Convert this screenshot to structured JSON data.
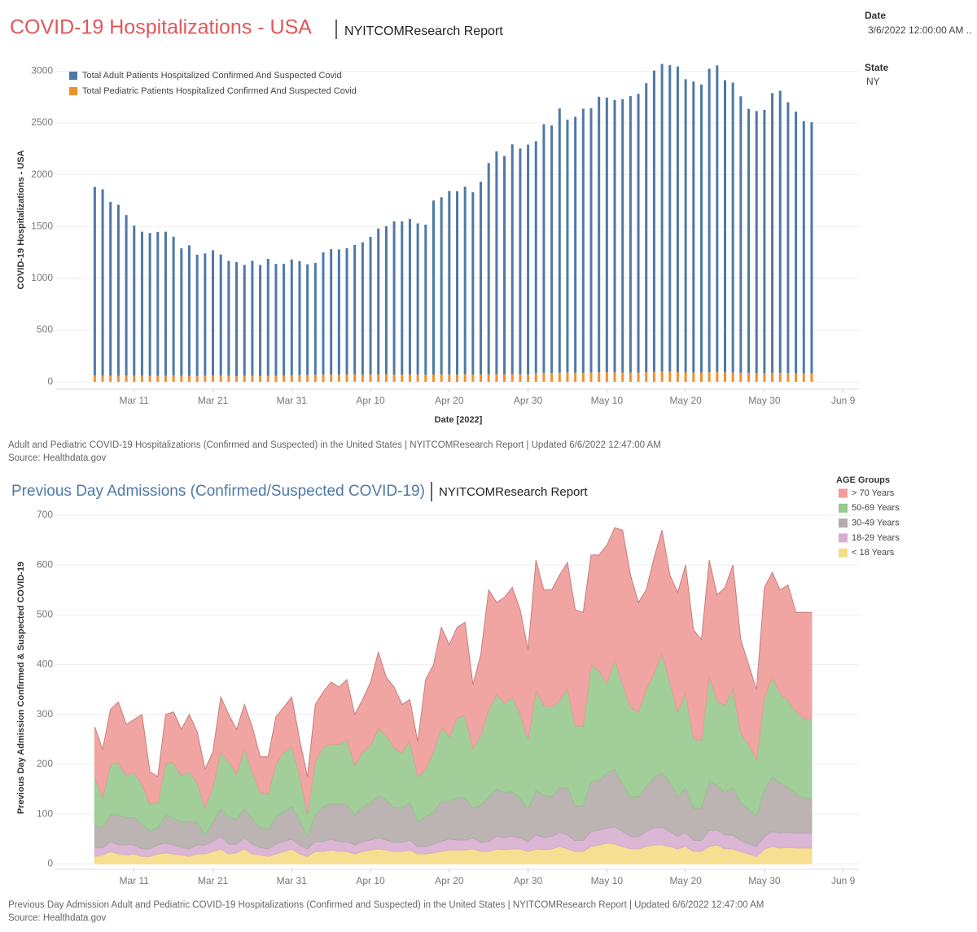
{
  "filters": [
    {
      "label": "Date",
      "value": "3/6/2022 12:00:00 AM .."
    },
    {
      "label": "State",
      "value": "NY"
    }
  ],
  "chart_data": [
    {
      "type": "bar",
      "stacked": true,
      "title": "COVID-19 Hospitalizations - USA",
      "subtitle": "NYITCOMResearch Report",
      "x_label": "Date [2022]",
      "y_label": "COVID-19 Hospitalizations - USA",
      "caption": "Adult and Pediatric COVID-19 Hospitalizations (Confirmed and Suspected) in the United States | NYITCOMResearch Report | Updated 6/6/2022 12:47:00 AM",
      "source": "Source: Healthdata.gov",
      "x": [
        "2022-03-06",
        "2022-03-07",
        "2022-03-08",
        "2022-03-09",
        "2022-03-10",
        "2022-03-11",
        "2022-03-12",
        "2022-03-13",
        "2022-03-14",
        "2022-03-15",
        "2022-03-16",
        "2022-03-17",
        "2022-03-18",
        "2022-03-19",
        "2022-03-20",
        "2022-03-21",
        "2022-03-22",
        "2022-03-23",
        "2022-03-24",
        "2022-03-25",
        "2022-03-26",
        "2022-03-27",
        "2022-03-28",
        "2022-03-29",
        "2022-03-30",
        "2022-03-31",
        "2022-04-01",
        "2022-04-02",
        "2022-04-03",
        "2022-04-04",
        "2022-04-05",
        "2022-04-06",
        "2022-04-07",
        "2022-04-08",
        "2022-04-09",
        "2022-04-10",
        "2022-04-11",
        "2022-04-12",
        "2022-04-13",
        "2022-04-14",
        "2022-04-15",
        "2022-04-16",
        "2022-04-17",
        "2022-04-18",
        "2022-04-19",
        "2022-04-20",
        "2022-04-21",
        "2022-04-22",
        "2022-04-23",
        "2022-04-24",
        "2022-04-25",
        "2022-04-26",
        "2022-04-27",
        "2022-04-28",
        "2022-04-29",
        "2022-04-30",
        "2022-05-01",
        "2022-05-02",
        "2022-05-03",
        "2022-05-04",
        "2022-05-05",
        "2022-05-06",
        "2022-05-07",
        "2022-05-08",
        "2022-05-09",
        "2022-05-10",
        "2022-05-11",
        "2022-05-12",
        "2022-05-13",
        "2022-05-14",
        "2022-05-15",
        "2022-05-16",
        "2022-05-17",
        "2022-05-18",
        "2022-05-19",
        "2022-05-20",
        "2022-05-21",
        "2022-05-22",
        "2022-05-23",
        "2022-05-24",
        "2022-05-25",
        "2022-05-26",
        "2022-05-27",
        "2022-05-28",
        "2022-05-29",
        "2022-05-30",
        "2022-05-31",
        "2022-06-01",
        "2022-06-02",
        "2022-06-03",
        "2022-06-04",
        "2022-06-05"
      ],
      "series": [
        {
          "name": "Total Adult Patients Hospitalized Confirmed And Suspected Covid",
          "color": "#4e79a7",
          "values": [
            1820,
            1800,
            1680,
            1650,
            1550,
            1450,
            1390,
            1380,
            1390,
            1390,
            1340,
            1230,
            1260,
            1170,
            1180,
            1210,
            1170,
            1110,
            1100,
            1070,
            1110,
            1070,
            1130,
            1080,
            1080,
            1120,
            1100,
            1070,
            1080,
            1180,
            1210,
            1210,
            1220,
            1250,
            1280,
            1330,
            1410,
            1430,
            1480,
            1480,
            1500,
            1460,
            1450,
            1680,
            1710,
            1770,
            1770,
            1810,
            1760,
            1860,
            2040,
            2150,
            2110,
            2220,
            2180,
            2220,
            2240,
            2400,
            2390,
            2550,
            2440,
            2470,
            2550,
            2550,
            2660,
            2650,
            2630,
            2640,
            2670,
            2690,
            2790,
            2910,
            2970,
            2960,
            2950,
            2830,
            2810,
            2780,
            2930,
            2960,
            2820,
            2800,
            2670,
            2550,
            2530,
            2540,
            2700,
            2725,
            2615,
            2525,
            2435,
            2425
          ]
        },
        {
          "name": "Total Pediatric Patients Hospitalized Confirmed And Suspected Covid",
          "color": "#f28e2b",
          "values": [
            62,
            60,
            58,
            60,
            61,
            59,
            60,
            57,
            58,
            60,
            62,
            59,
            58,
            57,
            60,
            61,
            60,
            58,
            56,
            59,
            60,
            58,
            57,
            59,
            60,
            62,
            66,
            65,
            68,
            70,
            71,
            69,
            70,
            72,
            68,
            70,
            71,
            73,
            70,
            69,
            72,
            70,
            68,
            71,
            73,
            72,
            70,
            74,
            71,
            72,
            73,
            75,
            72,
            74,
            73,
            71,
            84,
            88,
            86,
            90,
            92,
            89,
            88,
            91,
            93,
            95,
            92,
            90,
            89,
            91,
            94,
            96,
            100,
            98,
            95,
            92,
            90,
            91,
            94,
            96,
            93,
            90,
            88,
            86,
            85,
            87,
            88,
            86,
            85,
            84,
            83,
            82
          ]
        }
      ],
      "xlim": [
        "2022-03-01",
        "2022-06-11"
      ],
      "xticks": [
        {
          "value": "2022-03-11",
          "label": "Mar 11"
        },
        {
          "value": "2022-03-21",
          "label": "Mar 21"
        },
        {
          "value": "2022-03-31",
          "label": "Mar 31"
        },
        {
          "value": "2022-04-10",
          "label": "Apr 10"
        },
        {
          "value": "2022-04-20",
          "label": "Apr 20"
        },
        {
          "value": "2022-04-30",
          "label": "Apr 30"
        },
        {
          "value": "2022-05-10",
          "label": "May 10"
        },
        {
          "value": "2022-05-20",
          "label": "May 20"
        },
        {
          "value": "2022-05-30",
          "label": "May 30"
        },
        {
          "value": "2022-06-09",
          "label": "Jun 9"
        }
      ],
      "ylim": [
        -70,
        3200
      ],
      "yticks": [
        0,
        500,
        1000,
        1500,
        2000,
        2500,
        3000
      ],
      "grid": true,
      "legend": "top-left"
    },
    {
      "type": "area",
      "stacked": true,
      "title": "Previous Day Admissions (Confirmed/Suspected COVID-19)",
      "subtitle": "NYITCOMResearch Report",
      "y_label": "Previous Day Admission Confirmed & Suspected COVID-19",
      "caption": "Previous Day Admission Adult and Pediatric COVID-19 Hospitalizations (Confirmed and Suspected) in the United States | NYITCOMResearch Report | Updated 6/6/2022 12:47:00 AM",
      "source": "Source: Healthdata.gov",
      "legend_title": "AGE Groups",
      "legend": "right",
      "x": [
        "2022-03-06",
        "2022-03-07",
        "2022-03-08",
        "2022-03-09",
        "2022-03-10",
        "2022-03-11",
        "2022-03-12",
        "2022-03-13",
        "2022-03-14",
        "2022-03-15",
        "2022-03-16",
        "2022-03-17",
        "2022-03-18",
        "2022-03-19",
        "2022-03-20",
        "2022-03-21",
        "2022-03-22",
        "2022-03-23",
        "2022-03-24",
        "2022-03-25",
        "2022-03-26",
        "2022-03-27",
        "2022-03-28",
        "2022-03-29",
        "2022-03-30",
        "2022-03-31",
        "2022-04-01",
        "2022-04-02",
        "2022-04-03",
        "2022-04-04",
        "2022-04-05",
        "2022-04-06",
        "2022-04-07",
        "2022-04-08",
        "2022-04-09",
        "2022-04-10",
        "2022-04-11",
        "2022-04-12",
        "2022-04-13",
        "2022-04-14",
        "2022-04-15",
        "2022-04-16",
        "2022-04-17",
        "2022-04-18",
        "2022-04-19",
        "2022-04-20",
        "2022-04-21",
        "2022-04-22",
        "2022-04-23",
        "2022-04-24",
        "2022-04-25",
        "2022-04-26",
        "2022-04-27",
        "2022-04-28",
        "2022-04-29",
        "2022-04-30",
        "2022-05-01",
        "2022-05-02",
        "2022-05-03",
        "2022-05-04",
        "2022-05-05",
        "2022-05-06",
        "2022-05-07",
        "2022-05-08",
        "2022-05-09",
        "2022-05-10",
        "2022-05-11",
        "2022-05-12",
        "2022-05-13",
        "2022-05-14",
        "2022-05-15",
        "2022-05-16",
        "2022-05-17",
        "2022-05-18",
        "2022-05-19",
        "2022-05-20",
        "2022-05-21",
        "2022-05-22",
        "2022-05-23",
        "2022-05-24",
        "2022-05-25",
        "2022-05-26",
        "2022-05-27",
        "2022-05-28",
        "2022-05-29",
        "2022-05-30",
        "2022-05-31",
        "2022-06-01",
        "2022-06-02",
        "2022-06-03",
        "2022-06-04",
        "2022-06-05"
      ],
      "series": [
        {
          "name": "> 70 Years",
          "color": "#f09b99",
          "values": [
            102,
            97,
            110,
            122,
            102,
            107,
            140,
            65,
            52,
            98,
            102,
            92,
            115,
            102,
            77,
            70,
            110,
            95,
            90,
            88,
            90,
            72,
            75,
            95,
            90,
            100,
            72,
            75,
            115,
            110,
            125,
            115,
            120,
            102,
            105,
            127,
            153,
            117,
            122,
            97,
            82,
            70,
            180,
            175,
            200,
            185,
            182,
            187,
            128,
            162,
            240,
            185,
            212,
            220,
            208,
            180,
            262,
            232,
            235,
            252,
            252,
            233,
            228,
            220,
            232,
            278,
            265,
            310,
            265,
            220,
            200,
            232,
            247,
            215,
            240,
            257,
            218,
            203,
            233,
            212,
            237,
            247,
            188,
            160,
            140,
            220,
            210,
            208,
            232,
            198,
            213,
            213
          ]
        },
        {
          "name": "50-69 Years",
          "color": "#98c98e",
          "values": [
            95,
            60,
            100,
            105,
            85,
            90,
            80,
            55,
            50,
            105,
            110,
            95,
            100,
            80,
            55,
            70,
            115,
            110,
            90,
            120,
            95,
            70,
            70,
            105,
            120,
            120,
            90,
            45,
            105,
            120,
            120,
            120,
            130,
            100,
            110,
            115,
            135,
            130,
            120,
            110,
            125,
            90,
            95,
            120,
            150,
            130,
            160,
            165,
            120,
            140,
            175,
            190,
            180,
            190,
            170,
            140,
            200,
            180,
            180,
            175,
            200,
            160,
            160,
            235,
            220,
            180,
            220,
            200,
            180,
            170,
            195,
            210,
            240,
            200,
            170,
            190,
            140,
            135,
            210,
            170,
            175,
            200,
            140,
            130,
            115,
            185,
            200,
            180,
            175,
            165,
            160,
            160
          ]
        },
        {
          "name": "30-49 Years",
          "color": "#b4acab",
          "values": [
            45,
            40,
            55,
            60,
            55,
            55,
            50,
            35,
            35,
            55,
            55,
            50,
            55,
            45,
            20,
            40,
            55,
            55,
            50,
            60,
            50,
            40,
            40,
            55,
            60,
            65,
            50,
            25,
            55,
            70,
            70,
            75,
            75,
            60,
            70,
            75,
            85,
            80,
            70,
            70,
            75,
            50,
            60,
            65,
            80,
            75,
            85,
            85,
            60,
            75,
            90,
            95,
            90,
            90,
            80,
            65,
            90,
            85,
            80,
            90,
            95,
            70,
            70,
            100,
            100,
            110,
            115,
            95,
            80,
            80,
            90,
            100,
            110,
            100,
            80,
            90,
            65,
            65,
            100,
            90,
            85,
            95,
            75,
            70,
            60,
            95,
            110,
            100,
            90,
            80,
            70,
            70
          ]
        },
        {
          "name": "18-29 Years",
          "color": "#d8aed0",
          "values": [
            18,
            15,
            20,
            18,
            20,
            18,
            15,
            15,
            18,
            20,
            18,
            15,
            15,
            18,
            18,
            20,
            25,
            20,
            18,
            22,
            20,
            15,
            15,
            20,
            20,
            20,
            18,
            15,
            20,
            20,
            22,
            20,
            20,
            18,
            20,
            20,
            22,
            20,
            18,
            18,
            20,
            15,
            15,
            18,
            20,
            22,
            20,
            20,
            22,
            18,
            20,
            25,
            25,
            25,
            22,
            20,
            28,
            25,
            25,
            28,
            28,
            22,
            22,
            30,
            30,
            30,
            35,
            30,
            25,
            25,
            30,
            35,
            35,
            30,
            25,
            28,
            22,
            22,
            32,
            30,
            28,
            28,
            22,
            20,
            20,
            25,
            30,
            30,
            30,
            30,
            30,
            30
          ]
        },
        {
          "name": "< 18 Years",
          "color": "#f6dc86",
          "values": [
            15,
            18,
            25,
            20,
            18,
            20,
            15,
            15,
            20,
            22,
            20,
            18,
            15,
            20,
            20,
            25,
            30,
            20,
            22,
            30,
            20,
            18,
            15,
            20,
            25,
            30,
            20,
            15,
            25,
            25,
            28,
            25,
            25,
            20,
            25,
            28,
            30,
            28,
            25,
            25,
            28,
            20,
            20,
            22,
            25,
            28,
            28,
            28,
            30,
            25,
            25,
            30,
            28,
            30,
            30,
            25,
            30,
            28,
            30,
            35,
            30,
            25,
            25,
            35,
            38,
            42,
            40,
            35,
            30,
            30,
            35,
            38,
            38,
            35,
            30,
            35,
            25,
            25,
            35,
            38,
            30,
            30,
            25,
            20,
            15,
            30,
            35,
            32,
            33,
            32,
            32,
            32
          ]
        }
      ],
      "xlim": [
        "2022-03-01",
        "2022-06-11"
      ],
      "xticks": [
        {
          "value": "2022-03-11",
          "label": "Mar 11"
        },
        {
          "value": "2022-03-21",
          "label": "Mar 21"
        },
        {
          "value": "2022-03-31",
          "label": "Mar 31"
        },
        {
          "value": "2022-04-10",
          "label": "Apr 10"
        },
        {
          "value": "2022-04-20",
          "label": "Apr 20"
        },
        {
          "value": "2022-04-30",
          "label": "Apr 30"
        },
        {
          "value": "2022-05-10",
          "label": "May 10"
        },
        {
          "value": "2022-05-20",
          "label": "May 20"
        },
        {
          "value": "2022-05-30",
          "label": "May 30"
        },
        {
          "value": "2022-06-09",
          "label": "Jun 9"
        }
      ],
      "ylim": [
        -11,
        713
      ],
      "yticks": [
        0,
        100,
        200,
        300,
        400,
        500,
        600,
        700
      ],
      "grid": true
    }
  ]
}
